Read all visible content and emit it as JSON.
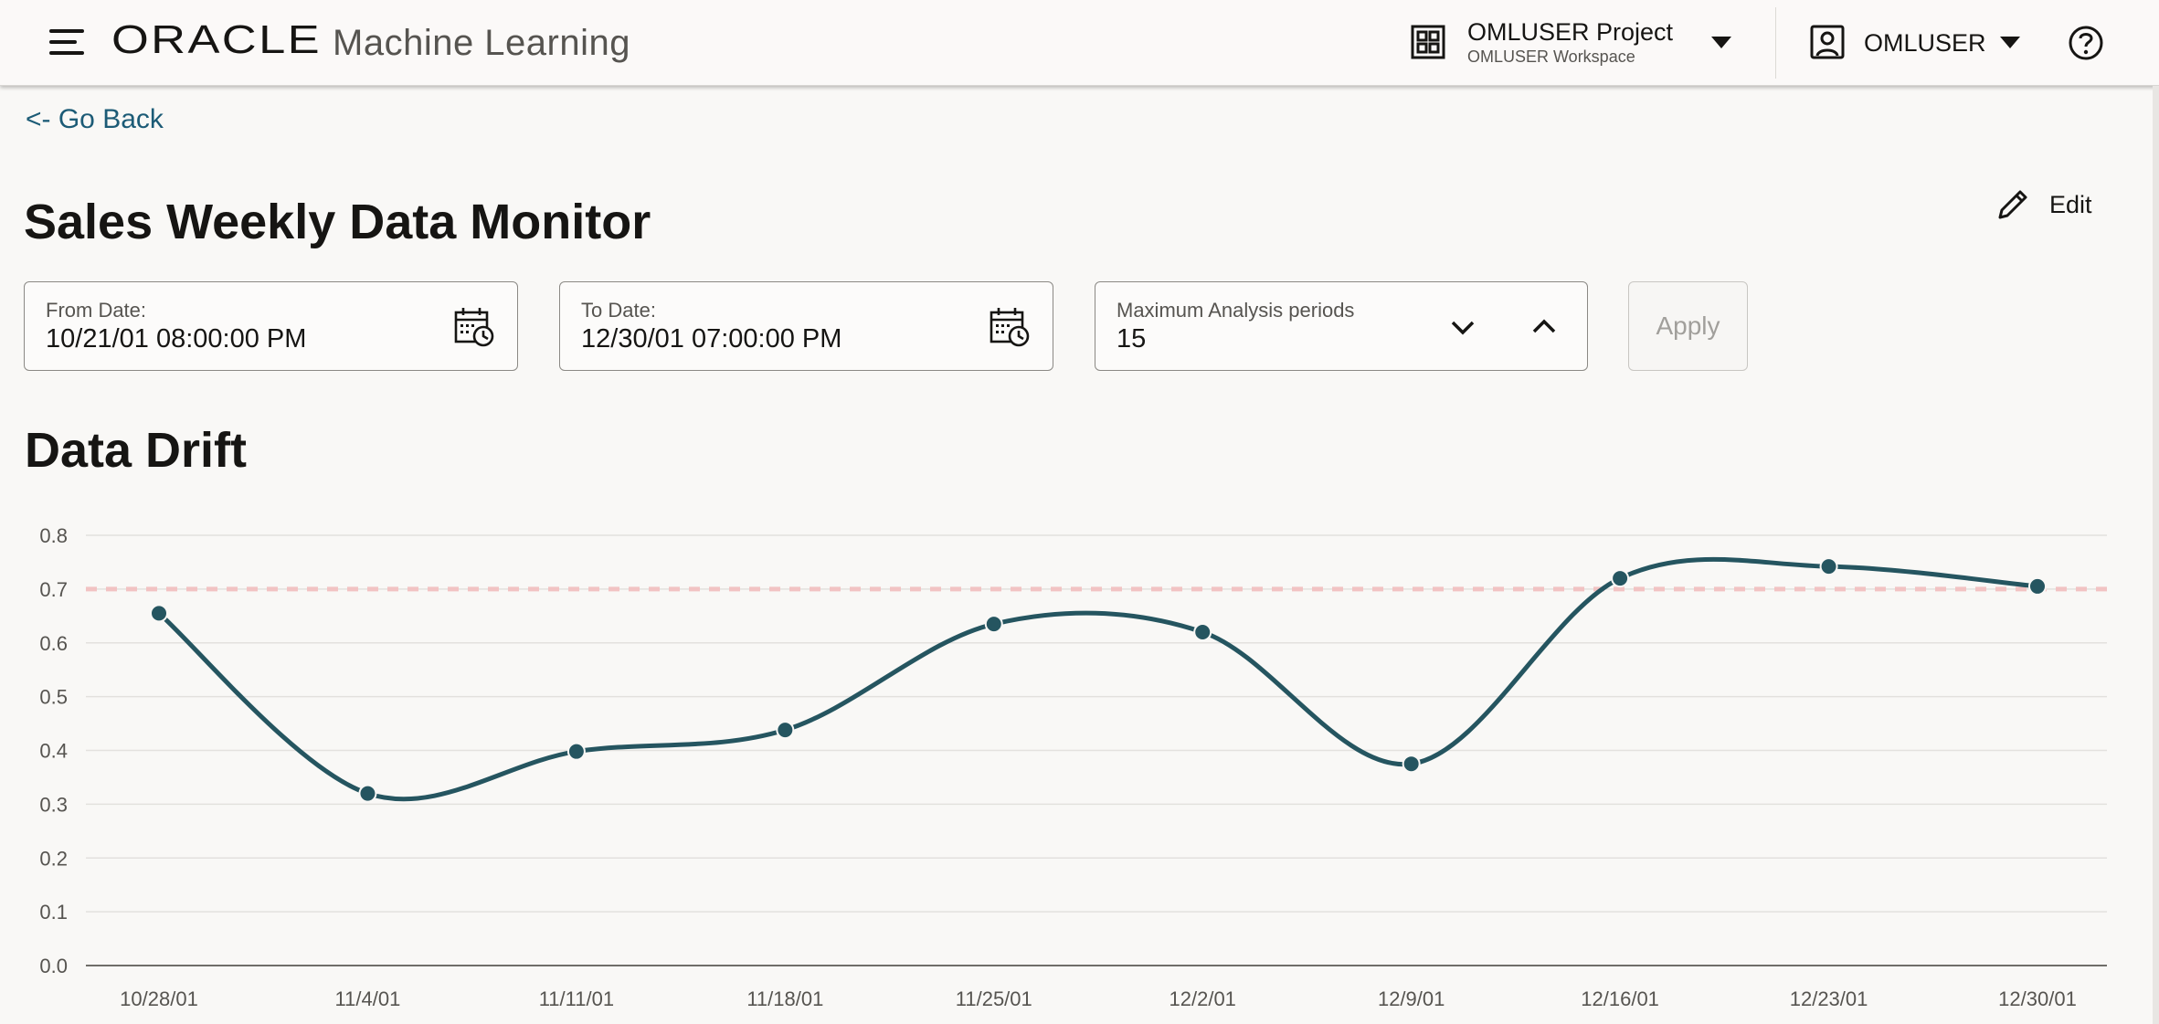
{
  "header": {
    "oracle_logo": "ORACLE",
    "app_name": "Machine Learning",
    "project_name": "OMLUSER Project",
    "workspace_name": "OMLUSER Workspace",
    "user_name": "OMLUSER"
  },
  "nav": {
    "go_back": "<- Go Back"
  },
  "page": {
    "title": "Sales Weekly Data Monitor",
    "edit_label": "Edit"
  },
  "filters": {
    "from_label": "From Date:",
    "from_value": "10/21/01 08:00:00 PM",
    "to_label": "To Date:",
    "to_value": "12/30/01 07:00:00 PM",
    "periods_label": "Maximum Analysis periods",
    "periods_value": "15",
    "apply_label": "Apply"
  },
  "section": {
    "title": "Data Drift"
  },
  "colors": {
    "line": "#255560",
    "threshold": "#f2c3c3",
    "grid": "#e3e1de",
    "link": "#1c5b76"
  },
  "chart_data": {
    "type": "line",
    "categories": [
      "10/28/01",
      "11/4/01",
      "11/11/01",
      "11/18/01",
      "11/25/01",
      "12/2/01",
      "12/9/01",
      "12/16/01",
      "12/23/01",
      "12/30/01"
    ],
    "values": [
      0.655,
      0.32,
      0.398,
      0.438,
      0.635,
      0.62,
      0.375,
      0.72,
      0.742,
      0.705
    ],
    "threshold": 0.7,
    "ylim": [
      0,
      0.8
    ],
    "yticks": [
      "0.0",
      "0.1",
      "0.2",
      "0.3",
      "0.4",
      "0.5",
      "0.6",
      "0.7",
      "0.8"
    ],
    "grid": true,
    "title": "",
    "xlabel": "",
    "ylabel": ""
  }
}
